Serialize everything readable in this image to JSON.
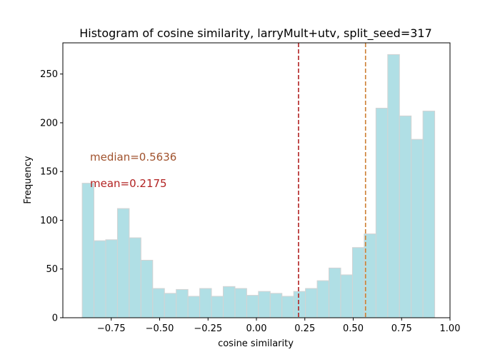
{
  "chart_data": {
    "type": "histogram",
    "title": "Histogram of cosine similarity, larryMult+utv, split_seed=317",
    "xlabel": "cosine similarity",
    "ylabel": "Frequency",
    "xlim": [
      -1.0,
      1.0
    ],
    "ylim": [
      0,
      282
    ],
    "bin_start": -0.9,
    "bin_width": 0.0607,
    "counts": [
      138,
      79,
      80,
      112,
      82,
      59,
      30,
      25,
      29,
      22,
      30,
      22,
      32,
      30,
      23,
      27,
      25,
      22,
      27,
      30,
      38,
      51,
      44,
      72,
      86,
      215,
      270,
      207,
      183,
      212
    ],
    "bar_color": "#b0dfe5",
    "bar_edge_color": "#d3d3d3",
    "x_ticks": [
      "−0.75",
      "−0.50",
      "−0.25",
      "0.00",
      "0.25",
      "0.50",
      "0.75",
      "1.00"
    ],
    "x_tick_values": [
      -0.75,
      -0.5,
      -0.25,
      0.0,
      0.25,
      0.5,
      0.75,
      1.0
    ],
    "y_ticks": [
      "0",
      "50",
      "100",
      "150",
      "200",
      "250"
    ],
    "y_tick_values": [
      0,
      50,
      100,
      150,
      200,
      250
    ],
    "mean": {
      "value": 0.2175,
      "label": "mean=0.2175",
      "color": "#b22222"
    },
    "median": {
      "value": 0.5636,
      "label": "median=0.5636",
      "color": "#cd7f32"
    },
    "median_label_color": "#a0522d",
    "grid": false
  }
}
